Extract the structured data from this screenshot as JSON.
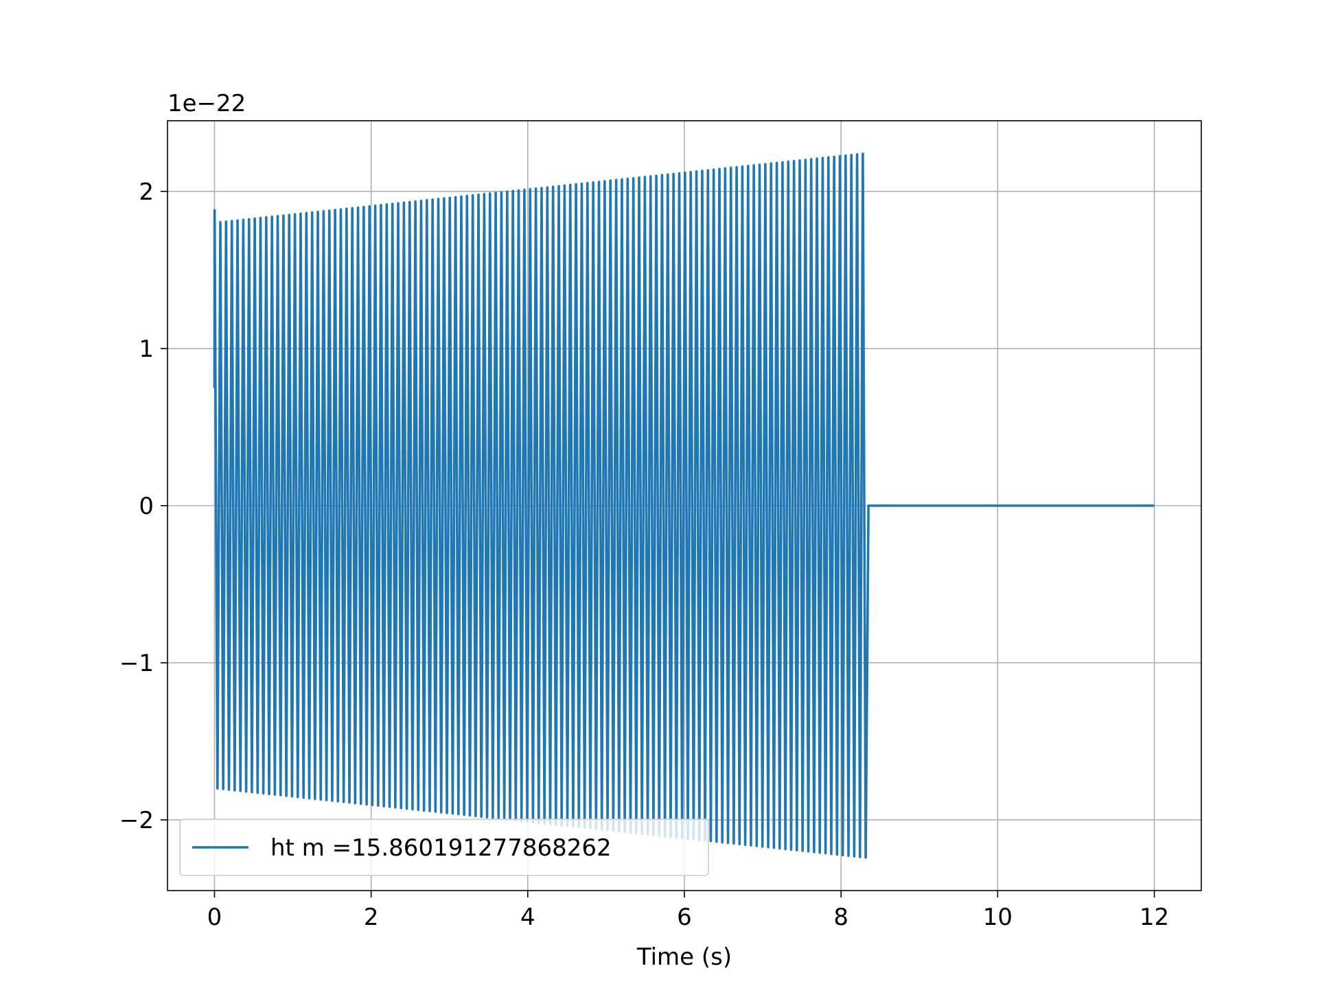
{
  "chart_data": {
    "type": "line",
    "title": "",
    "xlabel": "Time (s)",
    "ylabel": "",
    "y_scale_label": "1e−22",
    "y_scale_factor": 1e-22,
    "xlim": [
      -0.6,
      12.6
    ],
    "ylim": [
      -2.45,
      2.45
    ],
    "xticks": [
      0,
      2,
      4,
      6,
      8,
      10,
      12
    ],
    "xtick_labels": [
      "0",
      "2",
      "4",
      "6",
      "8",
      "10",
      "12"
    ],
    "yticks": [
      -2,
      -1,
      0,
      1,
      2
    ],
    "ytick_labels": [
      "−2",
      "−1",
      "0",
      "1",
      "2"
    ],
    "grid": true,
    "legend_position": "lower-left",
    "colors": {
      "series": "#1f77b4",
      "grid": "#b0b0b0",
      "axes": "#000000"
    },
    "series": [
      {
        "name": "ht m =15.860191277868262",
        "signal": {
          "start_time": 0.0,
          "signal_end_time": 8.35,
          "end_time": 12.0,
          "cycles": 114,
          "start_value": 0.75,
          "amplitude_start": 1.8,
          "amplitude_end": 2.24,
          "peak_first_cycle": 1.88,
          "tail_value": 0
        }
      }
    ]
  }
}
